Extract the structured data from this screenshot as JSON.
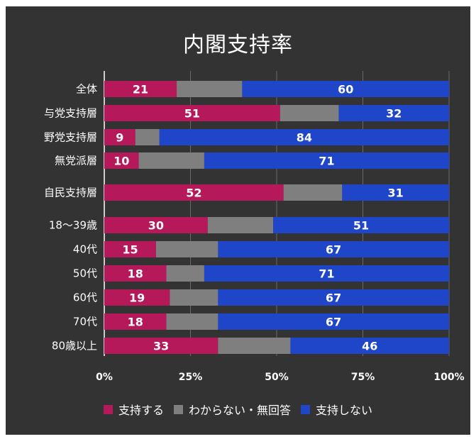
{
  "chart_data": {
    "type": "bar",
    "orientation": "horizontal",
    "stacked": true,
    "title": "内閣支持率",
    "xlabel": "",
    "ylabel": "",
    "xlim": [
      0,
      100
    ],
    "x_ticks": [
      "0%",
      "25%",
      "50%",
      "75%",
      "100%"
    ],
    "grid": true,
    "legend_position": "bottom",
    "categories": [
      "全体",
      "与党支持層",
      "野党支持層",
      "無党派層",
      "自民支持層",
      "18〜39歳",
      "40代",
      "50代",
      "60代",
      "70代",
      "80歳以上"
    ],
    "group_breaks_after": [
      3,
      4
    ],
    "series": [
      {
        "name": "支持する",
        "color": "#b5195a",
        "values": [
          21,
          51,
          9,
          10,
          52,
          30,
          15,
          18,
          19,
          18,
          33
        ],
        "show_labels": true
      },
      {
        "name": "わからない・無回答",
        "color": "#7f7f80",
        "values": [
          19,
          17,
          7,
          19,
          17,
          19,
          18,
          11,
          14,
          15,
          21
        ],
        "show_labels": false
      },
      {
        "name": "支持しない",
        "color": "#1f45c8",
        "values": [
          60,
          32,
          84,
          71,
          31,
          51,
          67,
          71,
          67,
          67,
          46
        ],
        "show_labels": true
      }
    ]
  },
  "colors": {
    "background": "#333333",
    "text": "#ffffff",
    "grid": "#6a6a6a"
  }
}
